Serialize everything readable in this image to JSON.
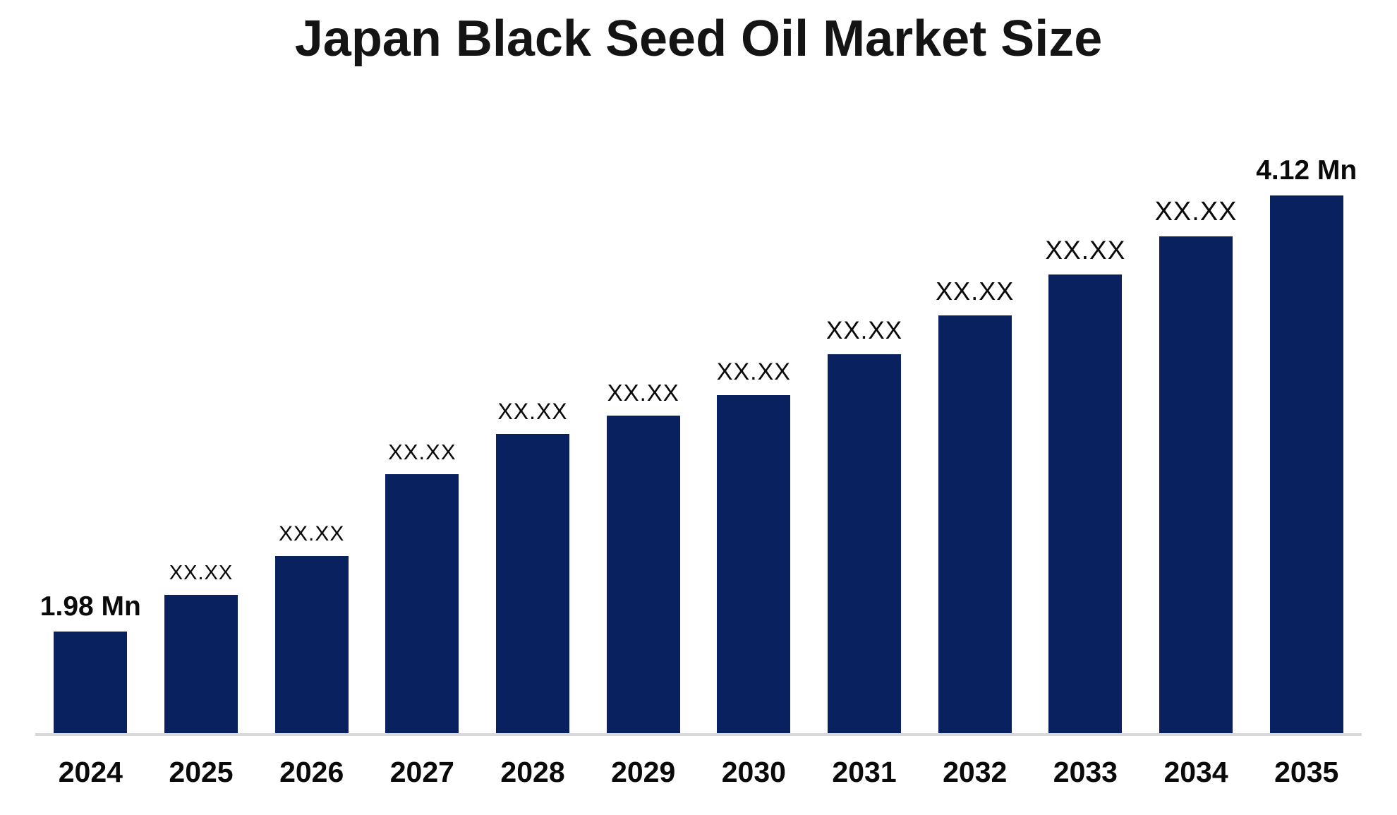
{
  "chart_data": {
    "type": "bar",
    "title": "Japan Black Seed Oil Market Size",
    "categories": [
      "2024",
      "2025",
      "2026",
      "2027",
      "2028",
      "2029",
      "2030",
      "2031",
      "2032",
      "2033",
      "2034",
      "2035"
    ],
    "values": [
      1.98,
      2.16,
      2.35,
      2.75,
      2.95,
      3.04,
      3.14,
      3.34,
      3.53,
      3.73,
      3.92,
      4.12
    ],
    "bar_labels": [
      "1.98 Mn",
      "XX.XX",
      "XX.XX",
      "XX.XX",
      "XX.XX",
      "XX.XX",
      "XX.XX",
      "XX.XX",
      "XX.XX",
      "XX.XX",
      "XX.XX",
      "4.12 Mn"
    ],
    "first_bar_label": "1.98 Mn",
    "last_bar_label": "4.12 Mn",
    "masked_label": "XX.XX",
    "unit_suffix": "Mn",
    "xlabel": "",
    "ylabel": "",
    "ylim": [
      1.48,
      4.4
    ],
    "grid": false,
    "legend": null,
    "colors": {
      "bar": "#0a2160",
      "axis_line": "#d9d9d9",
      "title_text": "#141414",
      "label_text": "#0a0a0a",
      "background": "#ffffff"
    }
  }
}
